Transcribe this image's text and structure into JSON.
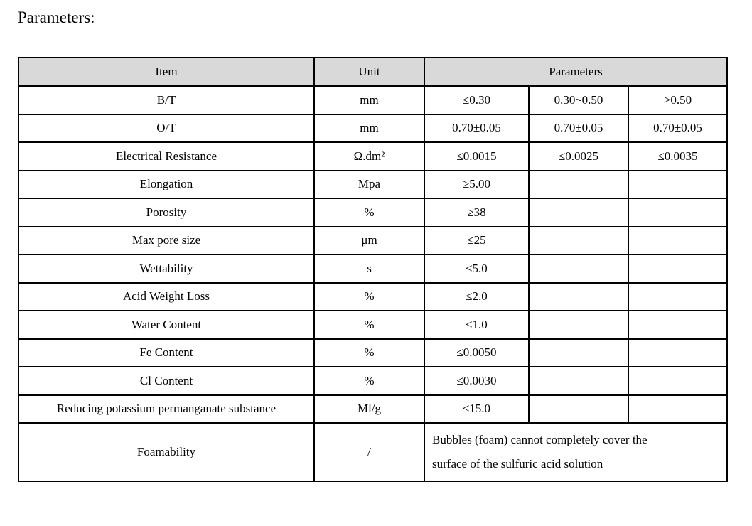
{
  "title": "Parameters:",
  "table": {
    "headers": [
      "Item",
      "Unit",
      "Parameters"
    ],
    "rows": [
      {
        "item": "B/T",
        "unit": "mm",
        "values": [
          "≤0.30",
          "0.30~0.50",
          ">0.50"
        ]
      },
      {
        "item": "O/T",
        "unit": "mm",
        "values": [
          "0.70±0.05",
          "0.70±0.05",
          "0.70±0.05"
        ]
      },
      {
        "item": "Electrical Resistance",
        "unit": "Ω.dm²",
        "values": [
          "≤0.0015",
          "≤0.0025",
          "≤0.0035"
        ]
      },
      {
        "item": "Elongation",
        "unit": "Mpa",
        "values": [
          "≥5.00",
          "",
          ""
        ]
      },
      {
        "item": "Porosity",
        "unit": "%",
        "values": [
          "≥38",
          "",
          ""
        ]
      },
      {
        "item": "Max pore size",
        "unit": "μm",
        "values": [
          "≤25",
          "",
          ""
        ]
      },
      {
        "item": "Wettability",
        "unit": "s",
        "values": [
          "≤5.0",
          "",
          ""
        ]
      },
      {
        "item": "Acid Weight Loss",
        "unit": "%",
        "values": [
          "≤2.0",
          "",
          ""
        ]
      },
      {
        "item": "Water Content",
        "unit": "%",
        "values": [
          "≤1.0",
          "",
          ""
        ]
      },
      {
        "item": "Fe Content",
        "unit": "%",
        "values": [
          "≤0.0050",
          "",
          ""
        ]
      },
      {
        "item": "Cl Content",
        "unit": "%",
        "values": [
          "≤0.0030",
          "",
          ""
        ]
      },
      {
        "item": "Reducing potassium permanganate substance",
        "unit": "Ml/g",
        "values": [
          "≤15.0",
          "",
          ""
        ]
      }
    ],
    "foam": {
      "item": "Foamability",
      "unit": "/",
      "line1": "Bubbles (foam) cannot completely cover the",
      "line2": "surface of the sulfuric acid solution"
    }
  }
}
